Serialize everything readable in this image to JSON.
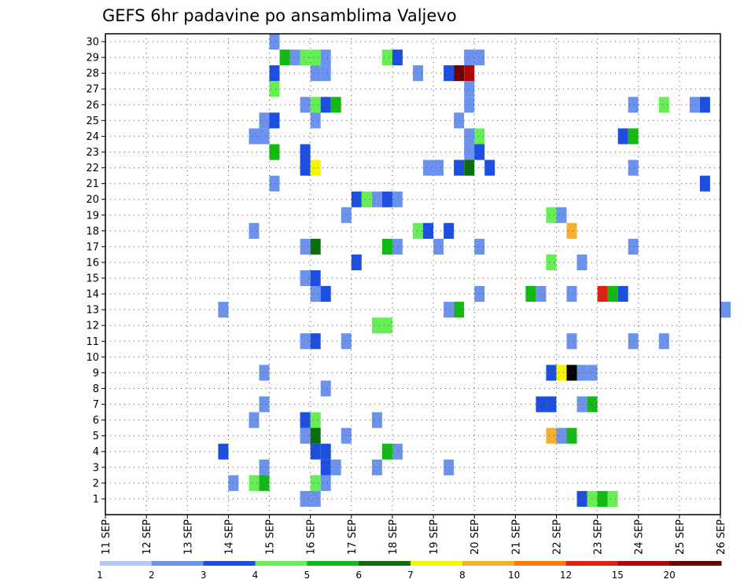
{
  "chart_data": {
    "type": "heatmap",
    "title": "GEFS 6hr padavine po ansamblima Valjevo",
    "x_labels": [
      "11 SEP",
      "12 SEP",
      "13 SEP",
      "14 SEP",
      "15 SEP",
      "16 SEP",
      "17 SEP",
      "18 SEP",
      "19 SEP",
      "20 SEP",
      "21 SEP",
      "22 SEP",
      "23 SEP",
      "24 SEP",
      "25 SEP",
      "26 SEP"
    ],
    "y_labels": [
      "1",
      "2",
      "3",
      "4",
      "5",
      "6",
      "7",
      "8",
      "9",
      "10",
      "11",
      "12",
      "13",
      "14",
      "15",
      "16",
      "17",
      "18",
      "19",
      "20",
      "21",
      "22",
      "23",
      "24",
      "25",
      "26",
      "27",
      "28",
      "29",
      "30"
    ],
    "grid": true,
    "colorbar": {
      "ticks": [
        "1",
        "2",
        "3",
        "4",
        "5",
        "6",
        "7",
        "8",
        "10",
        "12",
        "15",
        "20"
      ],
      "colors": [
        "#b3c7f5",
        "#6b93ee",
        "#1c4fe0",
        "#66ee55",
        "#11bb11",
        "#0b6e0b",
        "#f5f500",
        "#f5b030",
        "#f57c10",
        "#e02010",
        "#b00808",
        "#6e0000"
      ]
    },
    "cells": [
      [
        4,
        30,
        1
      ],
      [
        4.25,
        29,
        4
      ],
      [
        4.5,
        29,
        1
      ],
      [
        4.75,
        29,
        3
      ],
      [
        5,
        29,
        3
      ],
      [
        5.25,
        29,
        1
      ],
      [
        6.75,
        29,
        3
      ],
      [
        7,
        29,
        2
      ],
      [
        8.75,
        29,
        1
      ],
      [
        9,
        29,
        1
      ],
      [
        4,
        28,
        2
      ],
      [
        5,
        28,
        1
      ],
      [
        5.25,
        28,
        1
      ],
      [
        7.5,
        28,
        1
      ],
      [
        8.25,
        28,
        2
      ],
      [
        8.5,
        28,
        11
      ],
      [
        8.75,
        28,
        10
      ],
      [
        4,
        27,
        3
      ],
      [
        8.75,
        27,
        1
      ],
      [
        4.75,
        26,
        1
      ],
      [
        5,
        26,
        3
      ],
      [
        5.25,
        26,
        2
      ],
      [
        5.5,
        26,
        4
      ],
      [
        8.75,
        26,
        1
      ],
      [
        12.75,
        26,
        1
      ],
      [
        13.5,
        26,
        3
      ],
      [
        14.25,
        26,
        1
      ],
      [
        14.5,
        26,
        2
      ],
      [
        3.75,
        25,
        1
      ],
      [
        4,
        25,
        2
      ],
      [
        5,
        25,
        1
      ],
      [
        8.5,
        25,
        1
      ],
      [
        3.5,
        24,
        1
      ],
      [
        3.75,
        24,
        1
      ],
      [
        8.75,
        24,
        1
      ],
      [
        9,
        24,
        3
      ],
      [
        12.5,
        24,
        2
      ],
      [
        12.75,
        24,
        4
      ],
      [
        4,
        23,
        4
      ],
      [
        4.75,
        23,
        2
      ],
      [
        8.75,
        23,
        1
      ],
      [
        9,
        23,
        2
      ],
      [
        4.75,
        22,
        2
      ],
      [
        5,
        22,
        6
      ],
      [
        7.75,
        22,
        1
      ],
      [
        8,
        22,
        1
      ],
      [
        8.5,
        22,
        2
      ],
      [
        8.75,
        22,
        5
      ],
      [
        9.25,
        22,
        2
      ],
      [
        12.75,
        22,
        1
      ],
      [
        4,
        21,
        1
      ],
      [
        14.5,
        21,
        2
      ],
      [
        6,
        20,
        2
      ],
      [
        6.25,
        20,
        3
      ],
      [
        6.5,
        20,
        1
      ],
      [
        6.75,
        20,
        2
      ],
      [
        7,
        20,
        1
      ],
      [
        5.75,
        19,
        1
      ],
      [
        10.75,
        19,
        3
      ],
      [
        11,
        19,
        1
      ],
      [
        3.5,
        18,
        1
      ],
      [
        7.5,
        18,
        3
      ],
      [
        7.75,
        18,
        2
      ],
      [
        8.25,
        18,
        2
      ],
      [
        11.25,
        18,
        7
      ],
      [
        4.75,
        17,
        1
      ],
      [
        5,
        17,
        5
      ],
      [
        6.75,
        17,
        4
      ],
      [
        7,
        17,
        1
      ],
      [
        8,
        17,
        1
      ],
      [
        9,
        17,
        1
      ],
      [
        12.75,
        17,
        1
      ],
      [
        6,
        16,
        2
      ],
      [
        10.75,
        16,
        3
      ],
      [
        11.5,
        16,
        1
      ],
      [
        4.75,
        15,
        1
      ],
      [
        5,
        15,
        2
      ],
      [
        5,
        14,
        1
      ],
      [
        5.25,
        14,
        2
      ],
      [
        9,
        14,
        1
      ],
      [
        10.25,
        14,
        4
      ],
      [
        10.5,
        14,
        1
      ],
      [
        11.25,
        14,
        1
      ],
      [
        12,
        14,
        9
      ],
      [
        12.25,
        14,
        4
      ],
      [
        12.5,
        14,
        2
      ],
      [
        2.75,
        13,
        1
      ],
      [
        8.25,
        13,
        1
      ],
      [
        8.5,
        13,
        4
      ],
      [
        15,
        13,
        1
      ],
      [
        6.5,
        12,
        3
      ],
      [
        6.75,
        12,
        3
      ],
      [
        4.75,
        11,
        1
      ],
      [
        5,
        11,
        2
      ],
      [
        5.75,
        11,
        1
      ],
      [
        11.25,
        11,
        1
      ],
      [
        12.75,
        11,
        1
      ],
      [
        13.5,
        11,
        1
      ],
      [
        3.75,
        9,
        1
      ],
      [
        10.75,
        9,
        2
      ],
      [
        11,
        9,
        6
      ],
      [
        11.25,
        9,
        12
      ],
      [
        11.5,
        9,
        1
      ],
      [
        11.75,
        9,
        1
      ],
      [
        5.25,
        8,
        1
      ],
      [
        3.75,
        7,
        1
      ],
      [
        10.5,
        7,
        2
      ],
      [
        10.75,
        7,
        2
      ],
      [
        11.5,
        7,
        1
      ],
      [
        11.75,
        7,
        4
      ],
      [
        3.5,
        6,
        1
      ],
      [
        4.75,
        6,
        2
      ],
      [
        5,
        6,
        3
      ],
      [
        6.5,
        6,
        1
      ],
      [
        4.75,
        5,
        1
      ],
      [
        5,
        5,
        5
      ],
      [
        5.75,
        5,
        1
      ],
      [
        10.75,
        5,
        7
      ],
      [
        11,
        5,
        1
      ],
      [
        11.25,
        5,
        4
      ],
      [
        2.75,
        4,
        2
      ],
      [
        5,
        4,
        2
      ],
      [
        5.25,
        4,
        2
      ],
      [
        6.75,
        4,
        4
      ],
      [
        7,
        4,
        1
      ],
      [
        3.75,
        3,
        1
      ],
      [
        5.25,
        3,
        2
      ],
      [
        5.5,
        3,
        1
      ],
      [
        6.5,
        3,
        1
      ],
      [
        8.25,
        3,
        1
      ],
      [
        3,
        2,
        1
      ],
      [
        3.5,
        2,
        3
      ],
      [
        3.75,
        2,
        4
      ],
      [
        5,
        2,
        3
      ],
      [
        5.25,
        2,
        1
      ],
      [
        4.75,
        1,
        1
      ],
      [
        5,
        1,
        1
      ],
      [
        11.5,
        1,
        2
      ],
      [
        11.75,
        1,
        3
      ],
      [
        12,
        1,
        4
      ],
      [
        12.25,
        1,
        3
      ]
    ]
  }
}
